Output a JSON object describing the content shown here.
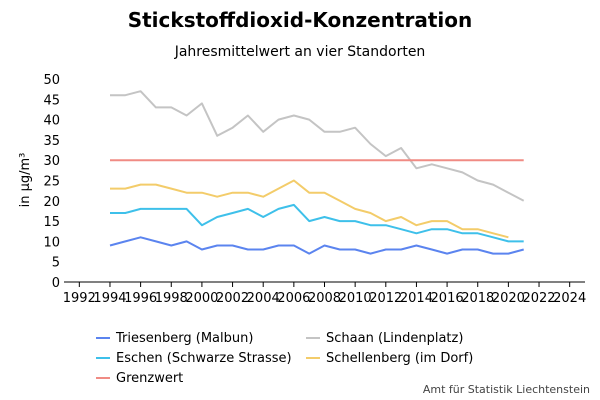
{
  "chart_data": {
    "type": "line",
    "title": "Stickstoffdioxid-Konzentration",
    "subtitle": "Jahresmittelwert an vier Standorten",
    "ylabel": "in µg/m³",
    "xlabel": "",
    "xlim": [
      1991,
      2025
    ],
    "ylim": [
      0,
      50
    ],
    "xticks": [
      1992,
      1994,
      1996,
      1998,
      2000,
      2002,
      2004,
      2006,
      2008,
      2010,
      2012,
      2014,
      2016,
      2018,
      2020,
      2022,
      2024
    ],
    "yticks": [
      0,
      5,
      10,
      15,
      20,
      25,
      30,
      35,
      40,
      45,
      50
    ],
    "grid": false,
    "legend_position": "bottom",
    "series": [
      {
        "name": "Triesenberg (Malbun)",
        "color": "#5b84ef",
        "x": [
          1994,
          1995,
          1996,
          1997,
          1998,
          1999,
          2000,
          2001,
          2002,
          2003,
          2004,
          2005,
          2006,
          2007,
          2008,
          2009,
          2010,
          2011,
          2012,
          2013,
          2014,
          2015,
          2016,
          2017,
          2018,
          2019,
          2020,
          2021
        ],
        "y": [
          9,
          10,
          11,
          10,
          9,
          10,
          8,
          9,
          9,
          8,
          8,
          9,
          9,
          7,
          9,
          8,
          8,
          7,
          8,
          8,
          9,
          8,
          7,
          8,
          8,
          7,
          7,
          8
        ]
      },
      {
        "name": "Schaan (Lindenplatz)",
        "color": "#c4c4c4",
        "x": [
          1994,
          1995,
          1996,
          1997,
          1998,
          1999,
          2000,
          2001,
          2002,
          2003,
          2004,
          2005,
          2006,
          2007,
          2008,
          2009,
          2010,
          2011,
          2012,
          2013,
          2014,
          2015,
          2016,
          2017,
          2018,
          2019,
          2020,
          2021
        ],
        "y": [
          46,
          46,
          47,
          43,
          43,
          41,
          44,
          36,
          38,
          41,
          37,
          40,
          41,
          40,
          37,
          37,
          38,
          34,
          31,
          33,
          28,
          29,
          28,
          27,
          25,
          24,
          22,
          20
        ]
      },
      {
        "name": "Eschen (Schwarze Strasse)",
        "color": "#3ec0ea",
        "x": [
          1994,
          1995,
          1996,
          1997,
          1998,
          1999,
          2000,
          2001,
          2002,
          2003,
          2004,
          2005,
          2006,
          2007,
          2008,
          2009,
          2010,
          2011,
          2012,
          2013,
          2014,
          2015,
          2016,
          2017,
          2018,
          2019,
          2020,
          2021
        ],
        "y": [
          17,
          17,
          18,
          18,
          18,
          18,
          14,
          16,
          17,
          18,
          16,
          18,
          19,
          15,
          16,
          15,
          15,
          14,
          14,
          13,
          12,
          13,
          13,
          12,
          12,
          11,
          10,
          10
        ]
      },
      {
        "name": "Schellenberg (im Dorf)",
        "color": "#f3cc6a",
        "x": [
          1994,
          1995,
          1996,
          1997,
          1998,
          1999,
          2000,
          2001,
          2002,
          2003,
          2004,
          2005,
          2006,
          2007,
          2008,
          2009,
          2010,
          2011,
          2012,
          2013,
          2014,
          2015,
          2016,
          2017,
          2018,
          2019,
          2020
        ],
        "y": [
          23,
          23,
          24,
          24,
          23,
          22,
          22,
          21,
          22,
          22,
          21,
          23,
          25,
          22,
          22,
          20,
          18,
          17,
          15,
          16,
          14,
          15,
          15,
          13,
          13,
          12,
          11
        ]
      },
      {
        "name": "Grenzwert",
        "color": "#f08b84",
        "x": [
          1994,
          2021
        ],
        "y": [
          30,
          30
        ]
      }
    ]
  },
  "source": "Amt für Statistik Liechtenstein"
}
